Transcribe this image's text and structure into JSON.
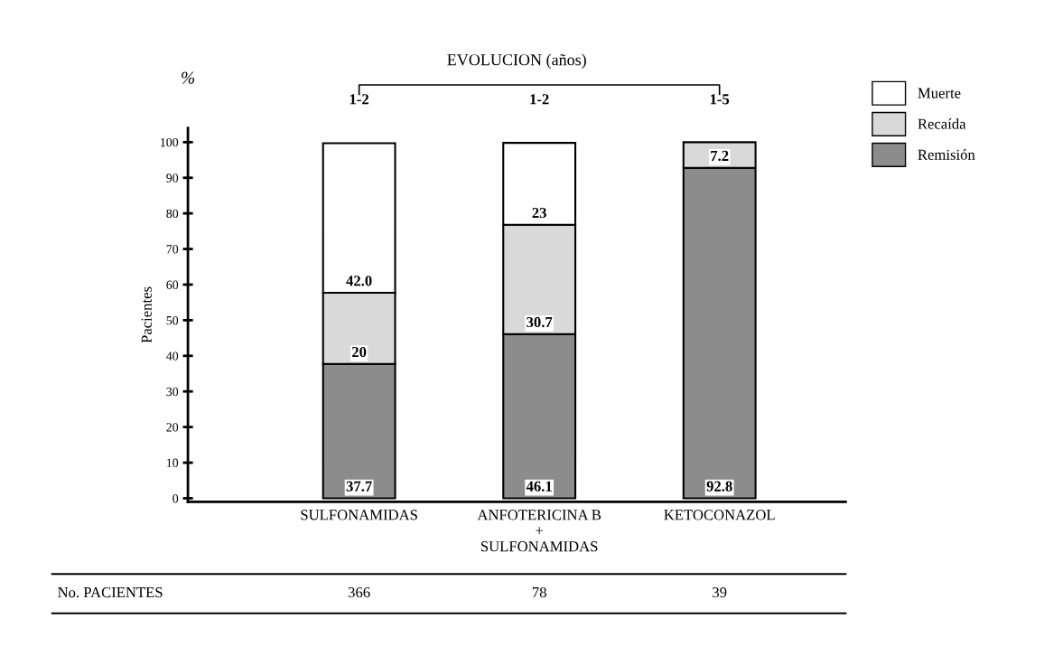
{
  "chart_data": {
    "type": "bar",
    "stacked": true,
    "title": "EVOLUCION (años)",
    "ylabel": "Pacientes",
    "categories": [
      "SULFONAMIDAS",
      "ANFOTERICINA B\n+\nSULFONAMIDAS",
      "KETOCONAZOL"
    ],
    "series": [
      {
        "name": "Remisión",
        "color": "#8c8c8c",
        "values": [
          37.7,
          46.1,
          92.8
        ],
        "value_labels": [
          "37.7",
          "46.1",
          "92.8"
        ]
      },
      {
        "name": "Recaída",
        "color": "#d9d9d9",
        "values": [
          20,
          30.7,
          7.2
        ],
        "value_labels": [
          "20",
          "30.7",
          "7.2"
        ]
      },
      {
        "name": "Muerte",
        "color": "#ffffff",
        "values": [
          42.0,
          23,
          null
        ],
        "value_labels": [
          "42.0",
          "23",
          null
        ]
      }
    ],
    "ylim": [
      -1,
      104
    ],
    "yticks": [
      0,
      10,
      20,
      30,
      40,
      50,
      60,
      70,
      80,
      90,
      100
    ],
    "grid": false,
    "legend": "top right",
    "annotations": [
      "1-2",
      "1-2",
      "1-5",
      "%",
      "No. PACIENTES",
      "366",
      "78",
      "39"
    ]
  }
}
